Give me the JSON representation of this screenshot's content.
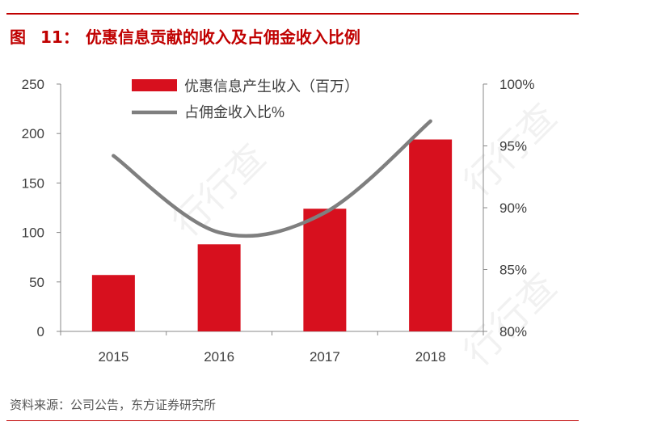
{
  "figure": {
    "label": "图",
    "number": "11：",
    "title": "优惠信息贡献的收入及占佣金收入比例"
  },
  "source": "资料来源：公司公告，东方证券研究所",
  "watermark": "行行查",
  "colors": {
    "bar": "#d7101e",
    "line": "#7f7f7f",
    "accent": "#c00000",
    "axis": "#888888",
    "text": "#404040"
  },
  "chart_data": {
    "type": "bar",
    "categories": [
      "2015",
      "2016",
      "2017",
      "2018"
    ],
    "series": [
      {
        "name": "优惠信息产生收入（百万）",
        "kind": "bar",
        "axis": "left",
        "values": [
          57,
          88,
          124,
          194
        ]
      },
      {
        "name": "占佣金收入比%",
        "kind": "line",
        "axis": "right",
        "values": [
          94.2,
          88.0,
          89.6,
          97.0
        ]
      }
    ],
    "ylim": [
      0,
      250
    ],
    "yticks": [
      "0",
      "50",
      "100",
      "150",
      "200",
      "250"
    ],
    "y2lim": [
      80,
      100
    ],
    "y2ticks": [
      "80%",
      "85%",
      "90%",
      "95%",
      "100%"
    ],
    "legend": "top-center",
    "grid": false
  }
}
